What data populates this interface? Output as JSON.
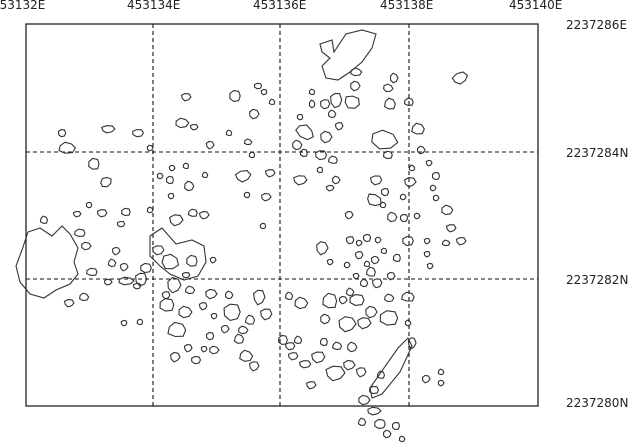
{
  "map": {
    "easting_labels": [
      "453132E",
      "453134E",
      "453136E",
      "453138E",
      "453140E"
    ],
    "northing_labels": [
      "2237286E",
      "2237284N",
      "2237282N",
      "2237280N"
    ],
    "grid_style": "dashed",
    "frame_color": "#111111",
    "feature_stroke": "#333333",
    "feature_type": "stone outlines"
  }
}
